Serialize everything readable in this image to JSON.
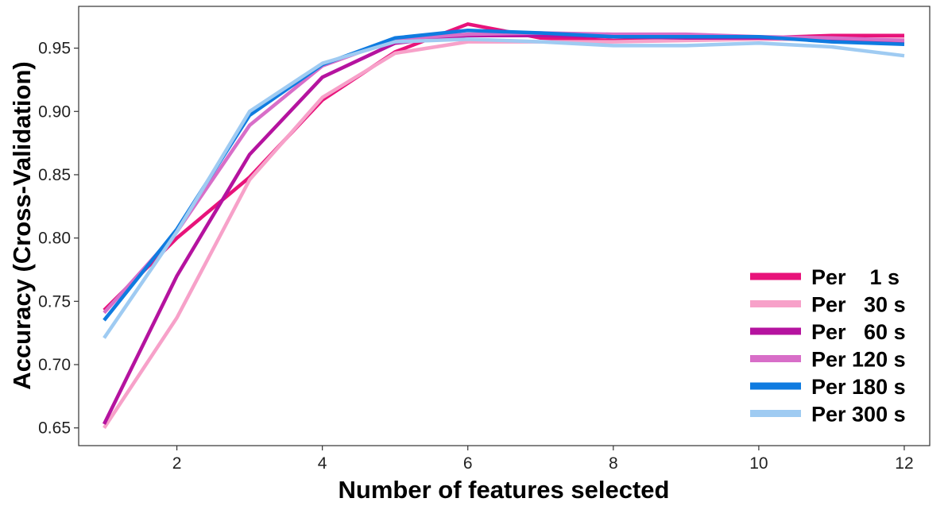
{
  "chart_data": {
    "type": "line",
    "title": "",
    "xlabel": "Number of features selected",
    "ylabel": "Accuracy (Cross-Validation)",
    "xlim": [
      0.65,
      12.35
    ],
    "ylim": [
      0.636,
      0.983
    ],
    "x_ticks": [
      2,
      4,
      6,
      8,
      10,
      12
    ],
    "y_ticks": [
      0.65,
      0.7,
      0.75,
      0.8,
      0.85,
      0.9,
      0.95
    ],
    "x_tick_labels": [
      "2",
      "4",
      "6",
      "8",
      "10",
      "12"
    ],
    "y_tick_labels": [
      "0.65",
      "0.70",
      "0.75",
      "0.80",
      "0.85",
      "0.90",
      "0.95"
    ],
    "grid": false,
    "legend_position": "bottom-right",
    "x": [
      1,
      2,
      3,
      4,
      5,
      6,
      7,
      8,
      9,
      10,
      11,
      12
    ],
    "series": [
      {
        "name": "Per    1 s",
        "color": "#E8137A",
        "values": [
          0.743,
          0.8,
          0.848,
          0.909,
          0.947,
          0.969,
          0.958,
          0.956,
          0.957,
          0.958,
          0.96,
          0.96
        ]
      },
      {
        "name": "Per   30 s",
        "color": "#F7A1C9",
        "values": [
          0.65,
          0.737,
          0.846,
          0.911,
          0.946,
          0.955,
          0.955,
          0.955,
          0.956,
          0.957,
          0.957,
          0.957
        ]
      },
      {
        "name": "Per   60 s",
        "color": "#B5139F",
        "values": [
          0.653,
          0.77,
          0.866,
          0.927,
          0.954,
          0.96,
          0.96,
          0.959,
          0.958,
          0.958,
          0.957,
          0.955
        ]
      },
      {
        "name": "Per 120 s",
        "color": "#D86EC8",
        "values": [
          0.741,
          0.805,
          0.889,
          0.936,
          0.957,
          0.961,
          0.962,
          0.961,
          0.961,
          0.959,
          0.958,
          0.956
        ]
      },
      {
        "name": "Per 180 s",
        "color": "#0F7BE0",
        "values": [
          0.735,
          0.807,
          0.897,
          0.937,
          0.958,
          0.964,
          0.962,
          0.959,
          0.959,
          0.959,
          0.955,
          0.953
        ]
      },
      {
        "name": "Per 300 s",
        "color": "#9FCBF2",
        "values": [
          0.721,
          0.805,
          0.9,
          0.938,
          0.955,
          0.957,
          0.955,
          0.952,
          0.952,
          0.954,
          0.951,
          0.944
        ]
      }
    ]
  }
}
